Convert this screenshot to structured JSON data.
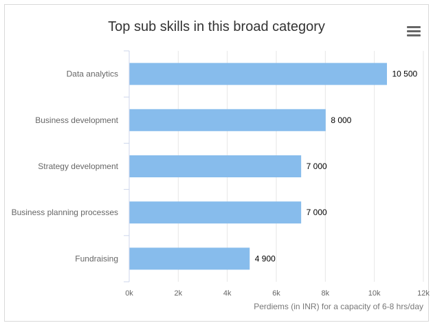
{
  "chart_data": {
    "type": "bar",
    "orientation": "horizontal",
    "title": "Top sub skills in this broad category",
    "categories": [
      "Data analytics",
      "Business development",
      "Strategy development",
      "Business planning processes",
      "Fundraising"
    ],
    "values": [
      10500,
      8000,
      7000,
      7000,
      4900
    ],
    "data_labels": [
      "10 500",
      "8 000",
      "7 000",
      "7 000",
      "4 900"
    ],
    "xlabel": "Perdiems (in INR) for a capacity of 6-8 hrs/day",
    "ylabel": "",
    "xlim": [
      0,
      12000
    ],
    "x_ticks": [
      0,
      2000,
      4000,
      6000,
      8000,
      10000,
      12000
    ],
    "x_tick_labels": [
      "0k",
      "2k",
      "4k",
      "6k",
      "8k",
      "10k",
      "12k"
    ],
    "grid": true,
    "bar_color": "#87bcec",
    "grid_color": "#e6e6e6"
  },
  "menu": {
    "icon": "hamburger-menu-icon"
  }
}
